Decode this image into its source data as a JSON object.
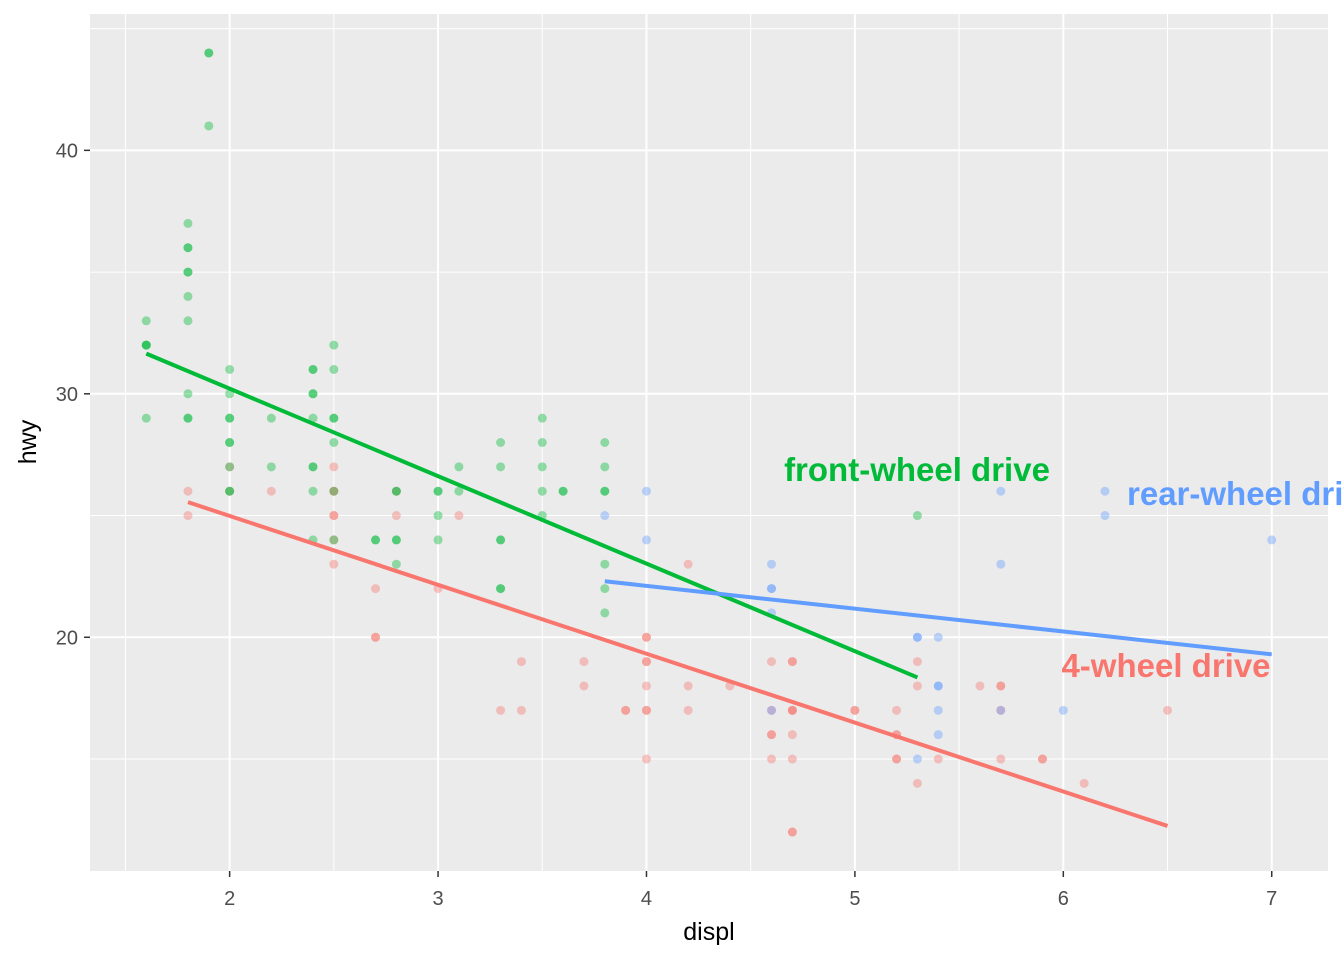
{
  "chart_data": {
    "type": "scatter",
    "title": "",
    "xlabel": "displ",
    "ylabel": "hwy",
    "xlim": [
      1.33,
      7.27
    ],
    "ylim": [
      10.4,
      45.6
    ],
    "x_ticks": [
      2,
      3,
      4,
      5,
      6,
      7
    ],
    "y_ticks": [
      20,
      30,
      40
    ],
    "grid": true,
    "legend": "none",
    "point_opacity": 0.4,
    "series": [
      {
        "key": "f",
        "color": "#00BA38",
        "annotation": "front-wheel drive",
        "points": [
          [
            1.6,
            33
          ],
          [
            1.6,
            32
          ],
          [
            1.6,
            32
          ],
          [
            1.6,
            32
          ],
          [
            1.6,
            29
          ],
          [
            1.8,
            29
          ],
          [
            1.8,
            29
          ],
          [
            1.8,
            30
          ],
          [
            1.8,
            33
          ],
          [
            1.8,
            34
          ],
          [
            1.8,
            35
          ],
          [
            1.8,
            35
          ],
          [
            1.8,
            36
          ],
          [
            1.8,
            36
          ],
          [
            1.8,
            37
          ],
          [
            1.9,
            44
          ],
          [
            1.9,
            44
          ],
          [
            1.9,
            41
          ],
          [
            2.0,
            31
          ],
          [
            2.0,
            30
          ],
          [
            2.0,
            29
          ],
          [
            2.0,
            29
          ],
          [
            2.0,
            28
          ],
          [
            2.0,
            28
          ],
          [
            2.0,
            27
          ],
          [
            2.0,
            26
          ],
          [
            2.0,
            26
          ],
          [
            2.2,
            29
          ],
          [
            2.2,
            27
          ],
          [
            2.4,
            31
          ],
          [
            2.4,
            31
          ],
          [
            2.4,
            30
          ],
          [
            2.4,
            30
          ],
          [
            2.4,
            29
          ],
          [
            2.4,
            27
          ],
          [
            2.4,
            27
          ],
          [
            2.4,
            26
          ],
          [
            2.4,
            24
          ],
          [
            2.5,
            32
          ],
          [
            2.5,
            31
          ],
          [
            2.5,
            29
          ],
          [
            2.5,
            29
          ],
          [
            2.5,
            28
          ],
          [
            2.5,
            26
          ],
          [
            2.5,
            24
          ],
          [
            2.7,
            24
          ],
          [
            2.7,
            24
          ],
          [
            2.8,
            26
          ],
          [
            2.8,
            26
          ],
          [
            2.8,
            24
          ],
          [
            2.8,
            24
          ],
          [
            2.8,
            23
          ],
          [
            3.0,
            26
          ],
          [
            3.0,
            26
          ],
          [
            3.0,
            25
          ],
          [
            3.0,
            24
          ],
          [
            3.1,
            27
          ],
          [
            3.1,
            26
          ],
          [
            3.3,
            28
          ],
          [
            3.3,
            27
          ],
          [
            3.3,
            24
          ],
          [
            3.3,
            24
          ],
          [
            3.3,
            22
          ],
          [
            3.3,
            22
          ],
          [
            3.5,
            29
          ],
          [
            3.5,
            28
          ],
          [
            3.5,
            27
          ],
          [
            3.5,
            26
          ],
          [
            3.5,
            25
          ],
          [
            3.6,
            26
          ],
          [
            3.6,
            26
          ],
          [
            3.8,
            28
          ],
          [
            3.8,
            27
          ],
          [
            3.8,
            26
          ],
          [
            3.8,
            26
          ],
          [
            3.8,
            23
          ],
          [
            3.8,
            22
          ],
          [
            3.8,
            21
          ],
          [
            5.3,
            25
          ]
        ],
        "fit": [
          [
            1.6,
            31.65
          ],
          [
            5.3,
            18.35
          ]
        ]
      },
      {
        "key": "r",
        "color": "#619CFF",
        "annotation": "rear-wheel drive",
        "points": [
          [
            3.8,
            25
          ],
          [
            4.0,
            26
          ],
          [
            4.0,
            24
          ],
          [
            4.6,
            23
          ],
          [
            4.6,
            22
          ],
          [
            4.6,
            22
          ],
          [
            4.6,
            21
          ],
          [
            4.6,
            17
          ],
          [
            5.3,
            20
          ],
          [
            5.3,
            20
          ],
          [
            5.3,
            15
          ],
          [
            5.4,
            20
          ],
          [
            5.4,
            18
          ],
          [
            5.4,
            18
          ],
          [
            5.4,
            17
          ],
          [
            5.4,
            16
          ],
          [
            5.7,
            26
          ],
          [
            5.7,
            23
          ],
          [
            5.7,
            17
          ],
          [
            6.0,
            17
          ],
          [
            6.2,
            26
          ],
          [
            6.2,
            25
          ],
          [
            7.0,
            24
          ]
        ],
        "fit": [
          [
            3.8,
            22.3
          ],
          [
            7.0,
            19.3
          ]
        ]
      },
      {
        "key": "4",
        "color": "#F8766D",
        "annotation": "4-wheel drive",
        "points": [
          [
            1.8,
            26
          ],
          [
            1.8,
            25
          ],
          [
            2.0,
            27
          ],
          [
            2.0,
            26
          ],
          [
            2.2,
            26
          ],
          [
            2.5,
            27
          ],
          [
            2.5,
            26
          ],
          [
            2.5,
            26
          ],
          [
            2.5,
            25
          ],
          [
            2.5,
            25
          ],
          [
            2.5,
            24
          ],
          [
            2.5,
            23
          ],
          [
            2.7,
            22
          ],
          [
            2.7,
            20
          ],
          [
            2.7,
            20
          ],
          [
            2.8,
            25
          ],
          [
            2.8,
            26
          ],
          [
            3.0,
            22
          ],
          [
            3.1,
            25
          ],
          [
            3.3,
            17
          ],
          [
            3.4,
            19
          ],
          [
            3.4,
            17
          ],
          [
            3.7,
            19
          ],
          [
            3.7,
            18
          ],
          [
            3.9,
            17
          ],
          [
            3.9,
            17
          ],
          [
            4.0,
            20
          ],
          [
            4.0,
            20
          ],
          [
            4.0,
            19
          ],
          [
            4.0,
            19
          ],
          [
            4.0,
            18
          ],
          [
            4.0,
            17
          ],
          [
            4.0,
            17
          ],
          [
            4.0,
            15
          ],
          [
            4.2,
            23
          ],
          [
            4.2,
            18
          ],
          [
            4.2,
            17
          ],
          [
            4.4,
            18
          ],
          [
            4.6,
            19
          ],
          [
            4.6,
            17
          ],
          [
            4.6,
            16
          ],
          [
            4.6,
            16
          ],
          [
            4.6,
            15
          ],
          [
            4.7,
            19
          ],
          [
            4.7,
            19
          ],
          [
            4.7,
            17
          ],
          [
            4.7,
            17
          ],
          [
            4.7,
            17
          ],
          [
            4.7,
            16
          ],
          [
            4.7,
            15
          ],
          [
            4.7,
            12
          ],
          [
            4.7,
            12
          ],
          [
            5.0,
            17
          ],
          [
            5.0,
            17
          ],
          [
            5.2,
            17
          ],
          [
            5.2,
            16
          ],
          [
            5.2,
            16
          ],
          [
            5.2,
            15
          ],
          [
            5.2,
            15
          ],
          [
            5.3,
            19
          ],
          [
            5.3,
            18
          ],
          [
            5.3,
            14
          ],
          [
            5.4,
            15
          ],
          [
            5.6,
            18
          ],
          [
            5.7,
            18
          ],
          [
            5.7,
            18
          ],
          [
            5.7,
            17
          ],
          [
            5.7,
            15
          ],
          [
            5.9,
            15
          ],
          [
            5.9,
            15
          ],
          [
            6.1,
            14
          ],
          [
            6.5,
            17
          ]
        ],
        "fit": [
          [
            1.8,
            25.55
          ],
          [
            6.5,
            12.25
          ]
        ]
      }
    ]
  }
}
